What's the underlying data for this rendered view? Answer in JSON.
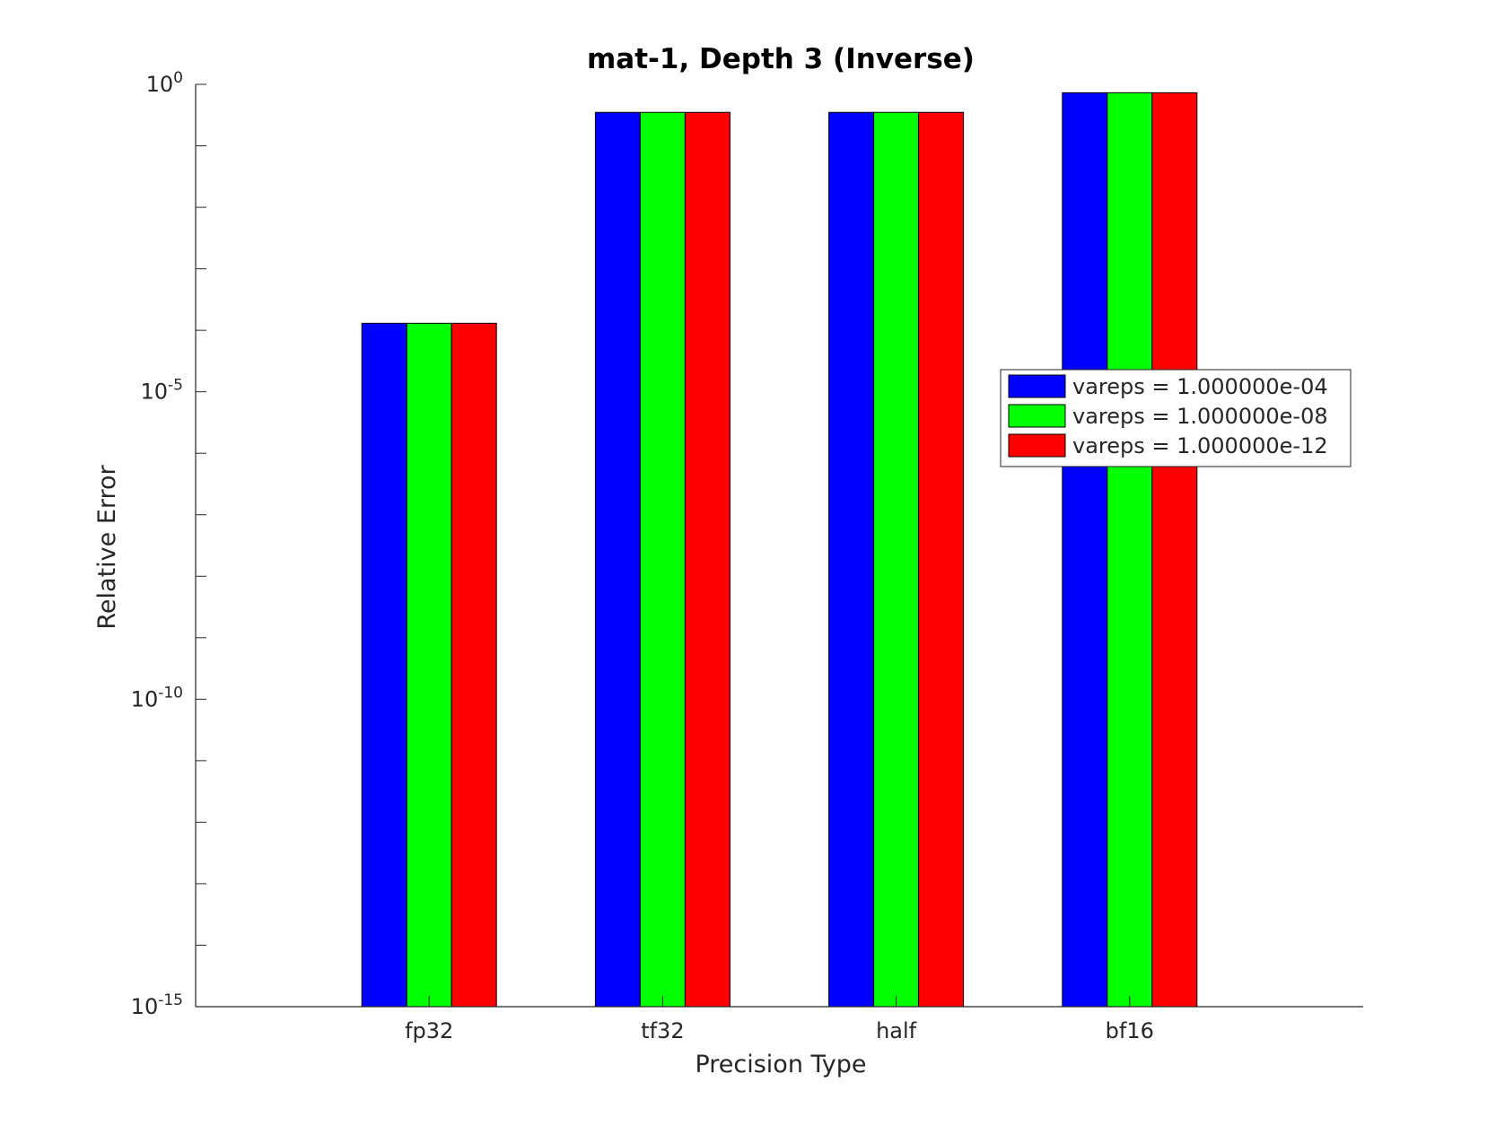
{
  "chart_data": {
    "type": "bar",
    "title": "mat-1, Depth 3 (Inverse)",
    "xlabel": "Precision Type",
    "ylabel": "Relative Error",
    "yscale": "log",
    "ylim": [
      1e-15,
      1
    ],
    "ytick_labels": [
      {
        "base": "10",
        "exp": "0"
      },
      {
        "base": "10",
        "exp": "-5"
      },
      {
        "base": "10",
        "exp": "-10"
      },
      {
        "base": "10",
        "exp": "-15"
      }
    ],
    "categories": [
      "fp32",
      "tf32",
      "half",
      "bf16"
    ],
    "series": [
      {
        "name": "vareps = 1.000000e-04",
        "color": "#0000ff",
        "values": [
          0.00013,
          0.35,
          0.35,
          0.73
        ]
      },
      {
        "name": "vareps = 1.000000e-08",
        "color": "#00ff00",
        "values": [
          0.00013,
          0.35,
          0.35,
          0.73
        ]
      },
      {
        "name": "vareps = 1.000000e-12",
        "color": "#ff0000",
        "values": [
          0.00013,
          0.35,
          0.35,
          0.73
        ]
      }
    ],
    "legend_position": "right",
    "grid": false
  }
}
